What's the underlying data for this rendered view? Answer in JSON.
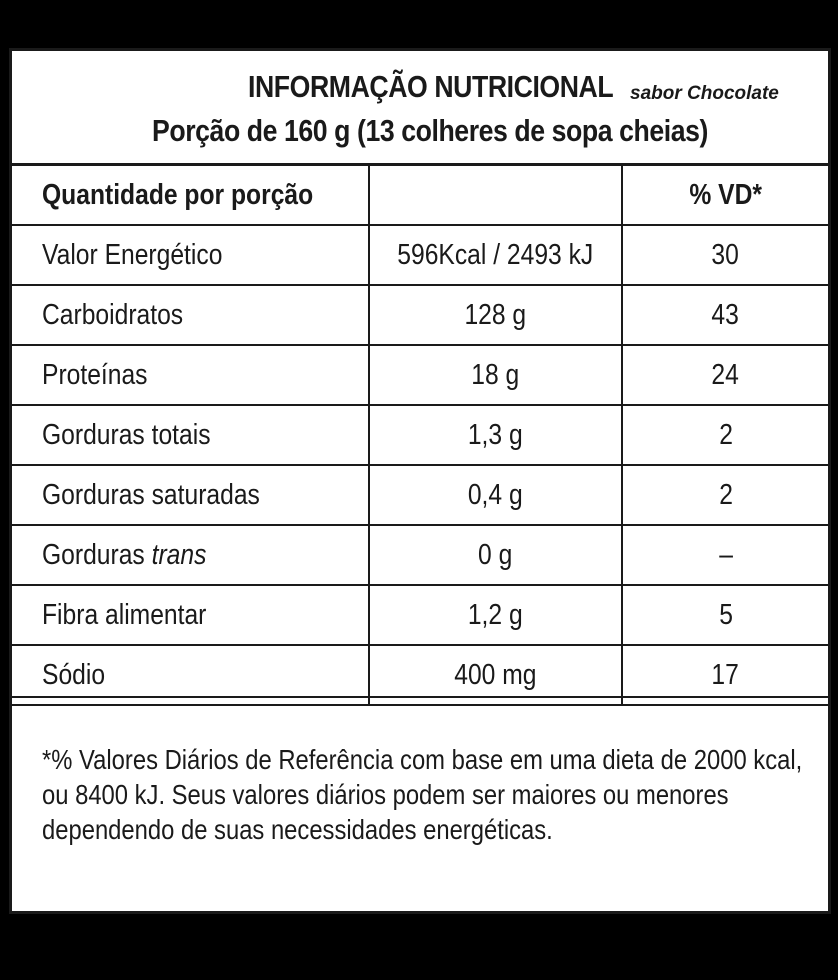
{
  "header": {
    "title": "INFORMAÇÃO NUTRICIONAL",
    "flavor": "sabor Chocolate",
    "portion": "Porção de 160 g (13 colheres de sopa cheias)"
  },
  "table": {
    "columns": [
      "Quantidade por porção",
      "",
      "% VD*"
    ],
    "rows": [
      {
        "nutrient": "Valor Energético",
        "nutrient_suffix": "",
        "amount": "596Kcal / 2493 kJ",
        "dv": "30"
      },
      {
        "nutrient": "Carboidratos",
        "nutrient_suffix": "",
        "amount": "128 g",
        "dv": "43"
      },
      {
        "nutrient": "Proteínas",
        "nutrient_suffix": "",
        "amount": "18 g",
        "dv": "24"
      },
      {
        "nutrient": "Gorduras totais",
        "nutrient_suffix": "",
        "amount": "1,3 g",
        "dv": "2"
      },
      {
        "nutrient": "Gorduras saturadas",
        "nutrient_suffix": "",
        "amount": "0,4 g",
        "dv": "2"
      },
      {
        "nutrient": "Gorduras ",
        "nutrient_suffix": "trans",
        "amount": "0 g",
        "dv": "–"
      },
      {
        "nutrient": "Fibra alimentar",
        "nutrient_suffix": "",
        "amount": "1,2 g",
        "dv": "5"
      },
      {
        "nutrient": "Sódio",
        "nutrient_suffix": "",
        "amount": "400 mg",
        "dv": "17"
      }
    ]
  },
  "footnote": {
    "lines": [
      "*% Valores Diários de Referência com base em uma dieta de 2000 kcal,",
      "ou 8400 kJ. Seus valores diários podem ser maiores ou menores",
      "dependendo de suas necessidades energéticas."
    ]
  }
}
